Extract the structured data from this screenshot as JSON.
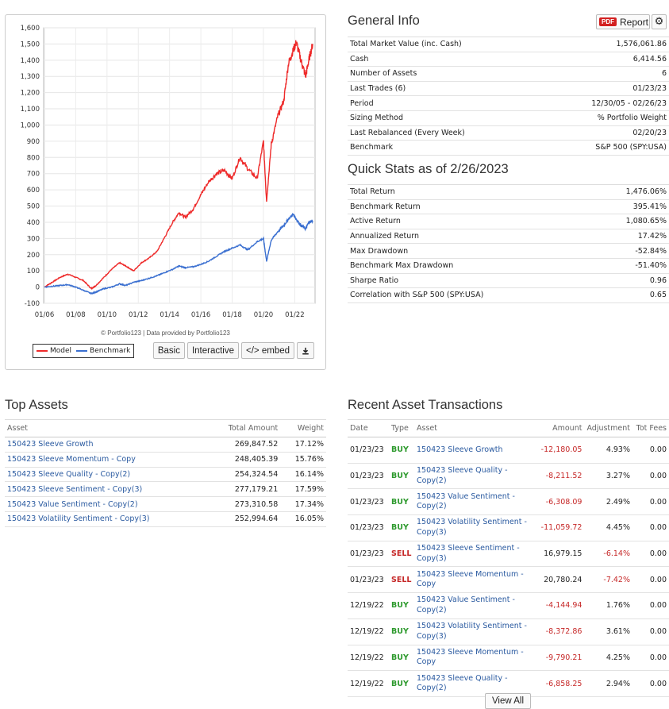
{
  "chart": {
    "credit": "© Portfolio123 | Data provided by Portfolio123",
    "legend": [
      "Model",
      "Benchmark"
    ],
    "buttons": {
      "basic": "Basic",
      "interactive": "Interactive",
      "embed": "</> embed",
      "download_icon": "download-icon"
    }
  },
  "chart_data": {
    "type": "line",
    "title": "",
    "ylim": [
      -100,
      1600
    ],
    "yticks": [
      -100,
      0,
      100,
      200,
      300,
      400,
      500,
      600,
      700,
      800,
      900,
      1000,
      1100,
      1200,
      1300,
      1400,
      1500,
      1600
    ],
    "xticks": [
      "01/06",
      "01/08",
      "01/10",
      "01/12",
      "01/14",
      "01/16",
      "01/18",
      "01/20",
      "01/22"
    ],
    "grid": true,
    "series": [
      {
        "name": "Model",
        "color": "#ee2a2a",
        "x": [
          2006,
          2006.5,
          2007,
          2007.5,
          2008,
          2008.5,
          2009.0,
          2009.3,
          2009.8,
          2010.3,
          2010.8,
          2011.2,
          2011.7,
          2012.2,
          2012.7,
          2013.2,
          2013.7,
          2014.2,
          2014.6,
          2015.0,
          2015.5,
          2016.0,
          2016.5,
          2017.0,
          2017.5,
          2018.0,
          2018.5,
          2019.0,
          2019.6,
          2020.0,
          2020.2,
          2020.5,
          2020.9,
          2021.3,
          2021.6,
          2021.9,
          2022.1,
          2022.4,
          2022.7,
          2022.9,
          2023.15
        ],
        "values": [
          0,
          30,
          60,
          80,
          60,
          40,
          -10,
          10,
          60,
          110,
          150,
          130,
          100,
          150,
          180,
          220,
          310,
          400,
          460,
          430,
          480,
          570,
          650,
          700,
          720,
          670,
          800,
          730,
          670,
          900,
          530,
          880,
          1050,
          1150,
          1380,
          1460,
          1510,
          1400,
          1300,
          1400,
          1500
        ]
      },
      {
        "name": "Benchmark",
        "color": "#3a6fd0",
        "x": [
          2006,
          2006.5,
          2007,
          2007.5,
          2008,
          2008.5,
          2009.0,
          2009.3,
          2009.8,
          2010.3,
          2010.8,
          2011.2,
          2011.7,
          2012.2,
          2012.7,
          2013.2,
          2013.7,
          2014.2,
          2014.6,
          2015.0,
          2015.5,
          2016.0,
          2016.5,
          2017.0,
          2017.5,
          2018.0,
          2018.5,
          2019.0,
          2019.6,
          2020.0,
          2020.2,
          2020.5,
          2020.9,
          2021.3,
          2021.6,
          2021.9,
          2022.1,
          2022.4,
          2022.7,
          2022.9,
          2023.15
        ],
        "values": [
          0,
          5,
          10,
          15,
          0,
          -20,
          -40,
          -30,
          -10,
          0,
          20,
          10,
          30,
          40,
          55,
          70,
          90,
          110,
          130,
          120,
          125,
          140,
          160,
          190,
          220,
          240,
          260,
          230,
          280,
          300,
          160,
          290,
          340,
          380,
          420,
          450,
          420,
          380,
          360,
          400,
          410
        ]
      }
    ]
  },
  "general_info": {
    "title": "General Info",
    "report_label": "Report",
    "pdf_badge": "PDF",
    "rows": [
      {
        "k": "Total Market Value (inc. Cash)",
        "v": "1,576,061.86"
      },
      {
        "k": "Cash",
        "v": "6,414.56"
      },
      {
        "k": "Number of Assets",
        "v": "6"
      },
      {
        "k": "Last Trades (6)",
        "v": "01/23/23"
      },
      {
        "k": "Period",
        "v": "12/30/05 - 02/26/23"
      },
      {
        "k": "Sizing Method",
        "v": "% Portfolio Weight"
      },
      {
        "k": "Last Rebalanced (Every Week)",
        "v": "02/20/23"
      },
      {
        "k": "Benchmark",
        "v": "S&P 500 (SPY:USA)"
      }
    ]
  },
  "quick_stats": {
    "title": "Quick Stats as of 2/26/2023",
    "rows": [
      {
        "k": "Total Return",
        "v": "1,476.06%"
      },
      {
        "k": "Benchmark Return",
        "v": "395.41%"
      },
      {
        "k": "Active Return",
        "v": "1,080.65%"
      },
      {
        "k": "Annualized Return",
        "v": "17.42%"
      },
      {
        "k": "Max Drawdown",
        "v": "-52.84%"
      },
      {
        "k": "Benchmark Max Drawdown",
        "v": "-51.40%"
      },
      {
        "k": "Sharpe Ratio",
        "v": "0.96"
      },
      {
        "k": "Correlation with S&P 500 (SPY:USA)",
        "v": "0.65"
      }
    ]
  },
  "top_assets": {
    "title": "Top Assets",
    "headers": [
      "Asset",
      "Total Amount",
      "Weight"
    ],
    "rows": [
      [
        "150423 Sleeve Growth",
        "269,847.52",
        "17.12%"
      ],
      [
        "150423 Sleeve Momentum - Copy",
        "248,405.39",
        "15.76%"
      ],
      [
        "150423 Sleeve Quality - Copy(2)",
        "254,324.54",
        "16.14%"
      ],
      [
        "150423 Sleeve Sentiment - Copy(3)",
        "277,179.21",
        "17.59%"
      ],
      [
        "150423 Value Sentiment - Copy(2)",
        "273,310.58",
        "17.34%"
      ],
      [
        "150423 Volatility Sentiment - Copy(3)",
        "252,994.64",
        "16.05%"
      ]
    ]
  },
  "transactions": {
    "title": "Recent Asset Transactions",
    "headers": [
      "Date",
      "Type",
      "Asset",
      "Amount",
      "Adjustment",
      "Tot Fees"
    ],
    "rows": [
      [
        "01/23/23",
        "BUY",
        "150423 Sleeve Growth",
        "-12,180.05",
        "4.93%",
        "0.00"
      ],
      [
        "01/23/23",
        "BUY",
        "150423 Sleeve Quality - Copy(2)",
        "-8,211.52",
        "3.27%",
        "0.00"
      ],
      [
        "01/23/23",
        "BUY",
        "150423 Value Sentiment - Copy(2)",
        "-6,308.09",
        "2.49%",
        "0.00"
      ],
      [
        "01/23/23",
        "BUY",
        "150423 Volatility Sentiment - Copy(3)",
        "-11,059.72",
        "4.45%",
        "0.00"
      ],
      [
        "01/23/23",
        "SELL",
        "150423 Sleeve Sentiment - Copy(3)",
        "16,979.15",
        "-6.14%",
        "0.00"
      ],
      [
        "01/23/23",
        "SELL",
        "150423 Sleeve Momentum - Copy",
        "20,780.24",
        "-7.42%",
        "0.00"
      ],
      [
        "12/19/22",
        "BUY",
        "150423 Value Sentiment - Copy(2)",
        "-4,144.94",
        "1.76%",
        "0.00"
      ],
      [
        "12/19/22",
        "BUY",
        "150423 Volatility Sentiment - Copy(3)",
        "-8,372.86",
        "3.61%",
        "0.00"
      ],
      [
        "12/19/22",
        "BUY",
        "150423 Sleeve Momentum - Copy",
        "-9,790.21",
        "4.25%",
        "0.00"
      ],
      [
        "12/19/22",
        "BUY",
        "150423 Sleeve Quality - Copy(2)",
        "-6,858.25",
        "2.94%",
        "0.00"
      ]
    ],
    "view_all": "View All"
  }
}
